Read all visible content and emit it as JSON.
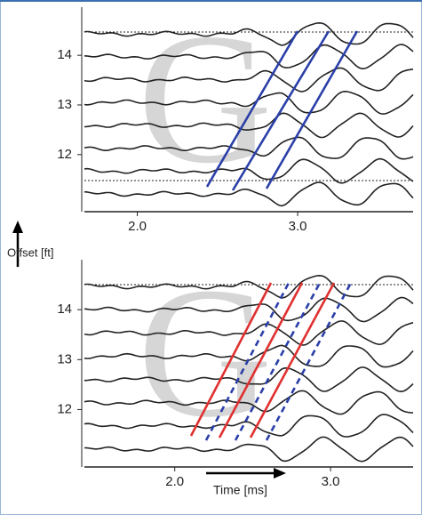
{
  "chart_data": [
    {
      "type": "wiggle",
      "watermark": "G",
      "xlim": [
        1.67,
        3.72
      ],
      "ylim": [
        10.85,
        14.97
      ],
      "xticks": [
        {
          "value": 2,
          "label": "2.0"
        },
        {
          "value": 3,
          "label": "3.0"
        }
      ],
      "yticks": [
        12,
        13,
        14
      ]
    },
    {
      "type": "wiggle",
      "watermark": "G",
      "ylabel": "Offset [ft]",
      "xlabel": "Time [ms]",
      "xlim": [
        1.42,
        3.53
      ],
      "ylim": [
        10.85,
        15.0
      ],
      "xticks": [
        {
          "value": 2,
          "label": "2.0"
        },
        {
          "value": 3,
          "label": "3.0"
        }
      ],
      "yticks": [
        12,
        13,
        14
      ]
    }
  ]
}
